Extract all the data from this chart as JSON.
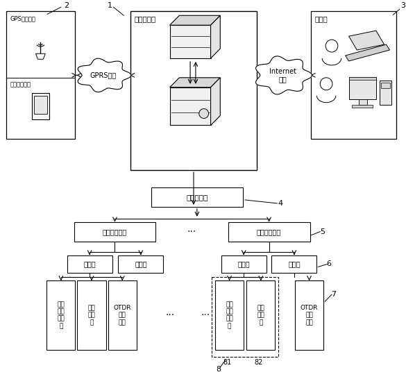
{
  "bg_color": "#ffffff",
  "label_service": "服务中心站",
  "label_gps": "GPS信号模块",
  "label_mobile": "移动手持设备",
  "label_gprs": "GPRS网络",
  "label_client": "客户端",
  "label_internet": "Internet\n网络",
  "label_general": "总监测中心",
  "label_region": "区域监测中心",
  "label_station": "监测站",
  "label_mod1": "光功\n率监\n测模\n块",
  "label_mod2": "光开\n关模\n块",
  "label_mod3": "OTDR\n测试\n模块",
  "num1": "1",
  "num2": "2",
  "num3": "3",
  "num4": "4",
  "num5": "5",
  "num6": "6",
  "num7": "7",
  "num8": "8",
  "num81": "81",
  "num82": "82"
}
